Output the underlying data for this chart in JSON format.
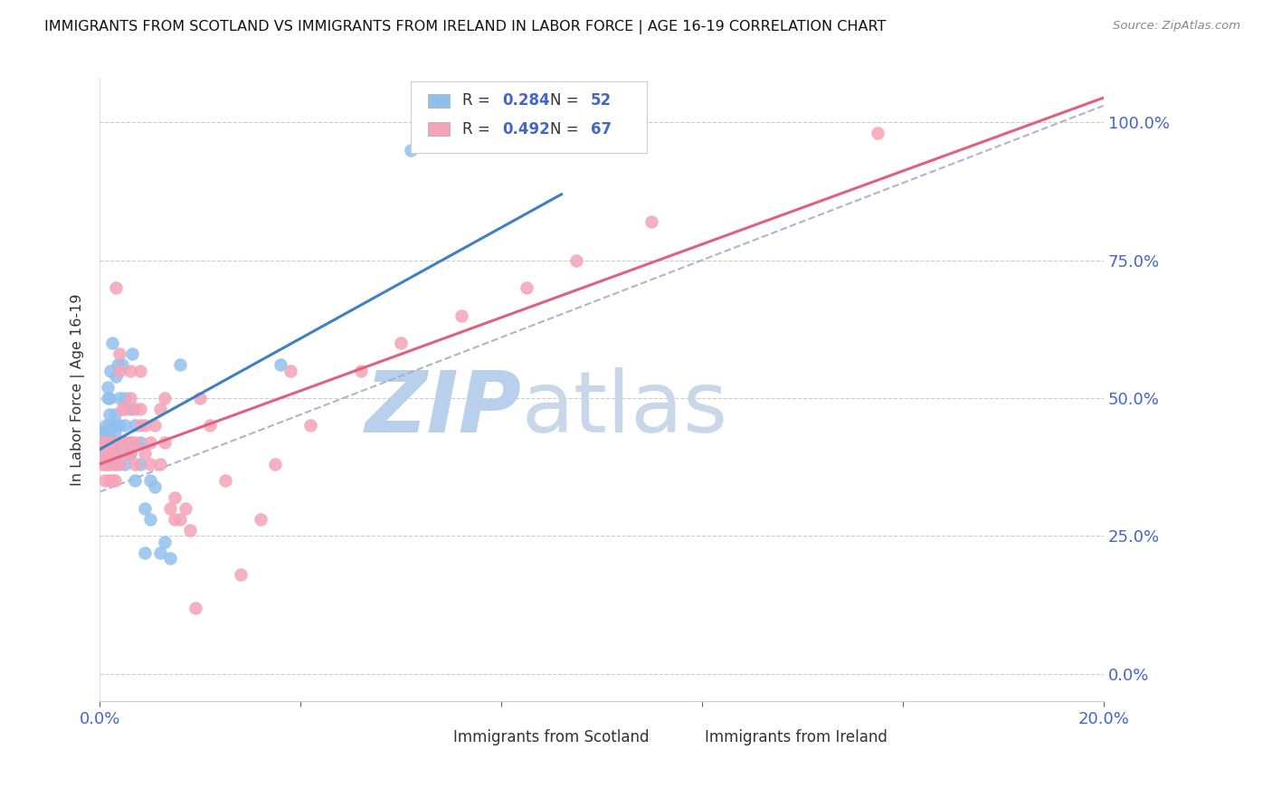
{
  "title": "IMMIGRANTS FROM SCOTLAND VS IMMIGRANTS FROM IRELAND IN LABOR FORCE | AGE 16-19 CORRELATION CHART",
  "source": "Source: ZipAtlas.com",
  "ylabel_left": "In Labor Force | Age 16-19",
  "x_min": 0.0,
  "x_max": 0.2,
  "y_min": -0.05,
  "y_max": 1.08,
  "right_yticks": [
    0.0,
    0.25,
    0.5,
    0.75,
    1.0
  ],
  "right_yticklabels": [
    "0.0%",
    "25.0%",
    "50.0%",
    "75.0%",
    "100.0%"
  ],
  "bottom_xticks": [
    0.0,
    0.04,
    0.08,
    0.12,
    0.16,
    0.2
  ],
  "bottom_xticklabels": [
    "0.0%",
    "",
    "",
    "",
    "",
    "20.0%"
  ],
  "scotland_color": "#92C0ED",
  "ireland_color": "#F4A4B8",
  "scotland_line_color": "#4080C0",
  "ireland_line_color": "#E06080",
  "ref_line_color": "#AAAACC",
  "scotland_R": 0.284,
  "scotland_N": 52,
  "ireland_R": 0.492,
  "ireland_N": 67,
  "grid_color": "#CCCCCC",
  "watermark": "ZIPatlas",
  "watermark_color": "#D8EAF8",
  "tick_label_color": "#4466CC",
  "scotland_x": [
    0.0005,
    0.0007,
    0.0008,
    0.001,
    0.001,
    0.001,
    0.0012,
    0.0013,
    0.0015,
    0.0015,
    0.002,
    0.002,
    0.002,
    0.002,
    0.0022,
    0.0025,
    0.003,
    0.003,
    0.003,
    0.003,
    0.003,
    0.003,
    0.0032,
    0.0035,
    0.004,
    0.004,
    0.004,
    0.004,
    0.0045,
    0.005,
    0.005,
    0.005,
    0.005,
    0.006,
    0.006,
    0.006,
    0.0065,
    0.007,
    0.007,
    0.008,
    0.008,
    0.009,
    0.009,
    0.01,
    0.01,
    0.011,
    0.012,
    0.013,
    0.014,
    0.016,
    0.036,
    0.062
  ],
  "scotland_y": [
    0.42,
    0.44,
    0.4,
    0.42,
    0.43,
    0.44,
    0.45,
    0.43,
    0.5,
    0.52,
    0.43,
    0.45,
    0.47,
    0.5,
    0.55,
    0.6,
    0.38,
    0.4,
    0.42,
    0.44,
    0.45,
    0.47,
    0.54,
    0.56,
    0.4,
    0.42,
    0.45,
    0.5,
    0.56,
    0.38,
    0.42,
    0.45,
    0.5,
    0.4,
    0.42,
    0.48,
    0.58,
    0.35,
    0.45,
    0.38,
    0.42,
    0.3,
    0.22,
    0.28,
    0.35,
    0.34,
    0.22,
    0.24,
    0.21,
    0.56,
    0.56,
    0.95
  ],
  "ireland_x": [
    0.0005,
    0.0007,
    0.001,
    0.001,
    0.001,
    0.0012,
    0.0015,
    0.0015,
    0.002,
    0.002,
    0.002,
    0.0022,
    0.0025,
    0.003,
    0.003,
    0.003,
    0.003,
    0.0032,
    0.004,
    0.004,
    0.004,
    0.004,
    0.0045,
    0.005,
    0.005,
    0.005,
    0.006,
    0.006,
    0.006,
    0.006,
    0.007,
    0.007,
    0.007,
    0.008,
    0.008,
    0.008,
    0.009,
    0.009,
    0.01,
    0.01,
    0.011,
    0.012,
    0.012,
    0.013,
    0.013,
    0.014,
    0.015,
    0.015,
    0.016,
    0.017,
    0.018,
    0.019,
    0.02,
    0.022,
    0.025,
    0.028,
    0.032,
    0.035,
    0.038,
    0.042,
    0.052,
    0.06,
    0.072,
    0.085,
    0.095,
    0.11,
    0.155
  ],
  "ireland_y": [
    0.38,
    0.42,
    0.35,
    0.38,
    0.4,
    0.42,
    0.38,
    0.4,
    0.35,
    0.38,
    0.4,
    0.42,
    0.35,
    0.38,
    0.4,
    0.42,
    0.35,
    0.7,
    0.38,
    0.42,
    0.55,
    0.58,
    0.48,
    0.4,
    0.42,
    0.48,
    0.4,
    0.42,
    0.5,
    0.55,
    0.38,
    0.42,
    0.48,
    0.45,
    0.48,
    0.55,
    0.4,
    0.45,
    0.38,
    0.42,
    0.45,
    0.38,
    0.48,
    0.42,
    0.5,
    0.3,
    0.28,
    0.32,
    0.28,
    0.3,
    0.26,
    0.12,
    0.5,
    0.45,
    0.35,
    0.18,
    0.28,
    0.38,
    0.55,
    0.45,
    0.55,
    0.6,
    0.65,
    0.7,
    0.75,
    0.82,
    0.98
  ]
}
